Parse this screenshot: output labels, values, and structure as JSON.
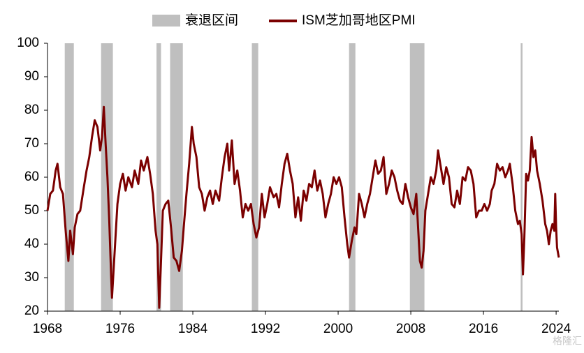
{
  "chart_data": {
    "type": "line",
    "legend": [
      "衰退区间"
    ],
    "recession_color": "#bfbfbf",
    "recessions": [
      [
        1969.9,
        1970.9
      ],
      [
        1973.9,
        1975.2
      ],
      [
        1980.0,
        1980.5
      ],
      [
        1981.5,
        1982.9
      ],
      [
        1990.5,
        1991.2
      ],
      [
        2001.2,
        2001.9
      ],
      [
        2007.9,
        2009.5
      ],
      [
        2020.1,
        2020.3
      ]
    ],
    "series": [
      {
        "name": "ISM芝加哥地区PMI",
        "color": "#7b0000",
        "x": [
          1968.0,
          1968.3,
          1968.6,
          1968.9,
          1969.1,
          1969.4,
          1969.7,
          1970.0,
          1970.3,
          1970.5,
          1970.8,
          1971.0,
          1971.3,
          1971.6,
          1972.0,
          1972.3,
          1972.6,
          1972.9,
          1973.2,
          1973.5,
          1973.8,
          1974.0,
          1974.2,
          1974.4,
          1974.6,
          1974.8,
          1975.0,
          1975.1,
          1975.4,
          1975.7,
          1976.0,
          1976.3,
          1976.6,
          1976.9,
          1977.3,
          1977.6,
          1978.0,
          1978.3,
          1978.6,
          1979.0,
          1979.3,
          1979.6,
          1979.9,
          1980.1,
          1980.3,
          1980.5,
          1980.7,
          1981.0,
          1981.3,
          1981.6,
          1981.9,
          1982.2,
          1982.5,
          1982.8,
          1983.0,
          1983.3,
          1983.6,
          1983.9,
          1984.1,
          1984.4,
          1984.7,
          1985.0,
          1985.3,
          1985.6,
          1985.9,
          1986.2,
          1986.5,
          1986.9,
          1987.2,
          1987.5,
          1987.8,
          1988.0,
          1988.3,
          1988.6,
          1988.9,
          1989.2,
          1989.5,
          1989.8,
          1990.1,
          1990.4,
          1990.7,
          1991.0,
          1991.3,
          1991.6,
          1991.9,
          1992.2,
          1992.5,
          1992.9,
          1993.2,
          1993.5,
          1993.8,
          1994.1,
          1994.4,
          1994.7,
          1995.0,
          1995.3,
          1995.6,
          1995.9,
          1996.2,
          1996.5,
          1996.8,
          1997.1,
          1997.4,
          1997.7,
          1998.0,
          1998.3,
          1998.6,
          1998.9,
          1999.2,
          1999.5,
          1999.8,
          2000.1,
          2000.4,
          2000.7,
          2001.0,
          2001.2,
          2001.5,
          2001.8,
          2002.0,
          2002.3,
          2002.6,
          2002.9,
          2003.2,
          2003.5,
          2003.8,
          2004.1,
          2004.4,
          2004.7,
          2005.0,
          2005.3,
          2005.6,
          2005.9,
          2006.2,
          2006.5,
          2006.8,
          2007.1,
          2007.4,
          2007.7,
          2008.0,
          2008.3,
          2008.6,
          2008.8,
          2009.0,
          2009.2,
          2009.4,
          2009.6,
          2009.9,
          2010.2,
          2010.5,
          2010.8,
          2011.0,
          2011.3,
          2011.6,
          2011.9,
          2012.2,
          2012.5,
          2012.8,
          2013.1,
          2013.4,
          2013.7,
          2014.0,
          2014.3,
          2014.6,
          2014.9,
          2015.2,
          2015.5,
          2015.8,
          2016.1,
          2016.4,
          2016.7,
          2016.9,
          2017.2,
          2017.5,
          2017.8,
          2018.1,
          2018.4,
          2018.7,
          2018.9,
          2019.2,
          2019.5,
          2019.8,
          2020.0,
          2020.2,
          2020.35,
          2020.5,
          2020.7,
          2020.9,
          2021.1,
          2021.3,
          2021.5,
          2021.7,
          2021.9,
          2022.2,
          2022.5,
          2022.8,
          2023.0,
          2023.2,
          2023.4,
          2023.6,
          2023.8,
          2023.9,
          2024.0,
          2024.1,
          2024.3
        ],
        "values": [
          50,
          55,
          56,
          62,
          64,
          57,
          55,
          44,
          35,
          44,
          37,
          45,
          49,
          50,
          57,
          62,
          66,
          72,
          77,
          75,
          68,
          72,
          81,
          70,
          60,
          47,
          31,
          24,
          38,
          52,
          58,
          61,
          56,
          60,
          57,
          62,
          58,
          65,
          62,
          66,
          61,
          55,
          44,
          40,
          21,
          35,
          50,
          52,
          53,
          45,
          36,
          35,
          32,
          38,
          45,
          55,
          64,
          75,
          70,
          66,
          57,
          55,
          50,
          54,
          56,
          52,
          56,
          53,
          60,
          66,
          70,
          62,
          71,
          58,
          62,
          56,
          48,
          52,
          50,
          52,
          46,
          42,
          45,
          55,
          48,
          52,
          57,
          54,
          55,
          51,
          58,
          64,
          67,
          62,
          58,
          48,
          54,
          47,
          56,
          53,
          58,
          57,
          62,
          56,
          59,
          55,
          48,
          52,
          55,
          60,
          58,
          60,
          57,
          48,
          40,
          36,
          41,
          45,
          43,
          55,
          52,
          48,
          52,
          55,
          60,
          65,
          61,
          62,
          66,
          55,
          58,
          62,
          60,
          56,
          53,
          52,
          58,
          54,
          51,
          49,
          55,
          45,
          35,
          33,
          38,
          50,
          55,
          60,
          58,
          62,
          68,
          63,
          58,
          63,
          60,
          52,
          51,
          56,
          52,
          60,
          59,
          63,
          62,
          58,
          48,
          50,
          50,
          52,
          50,
          52,
          56,
          58,
          64,
          62,
          63,
          60,
          62,
          64,
          58,
          50,
          46,
          47,
          43,
          31,
          42,
          61,
          59,
          62,
          72,
          66,
          68,
          62,
          58,
          53,
          46,
          44,
          40,
          44,
          46,
          44,
          55,
          45,
          39,
          36
        ]
      }
    ],
    "xlim": [
      1968,
      2024.3
    ],
    "xticks": [
      1968,
      1976,
      1984,
      1992,
      2000,
      2008,
      2016,
      2024
    ],
    "ylim": [
      20,
      100
    ],
    "yticks": [
      20,
      30,
      40,
      50,
      60,
      70,
      80,
      90,
      100
    ],
    "watermark": "格隆汇"
  }
}
